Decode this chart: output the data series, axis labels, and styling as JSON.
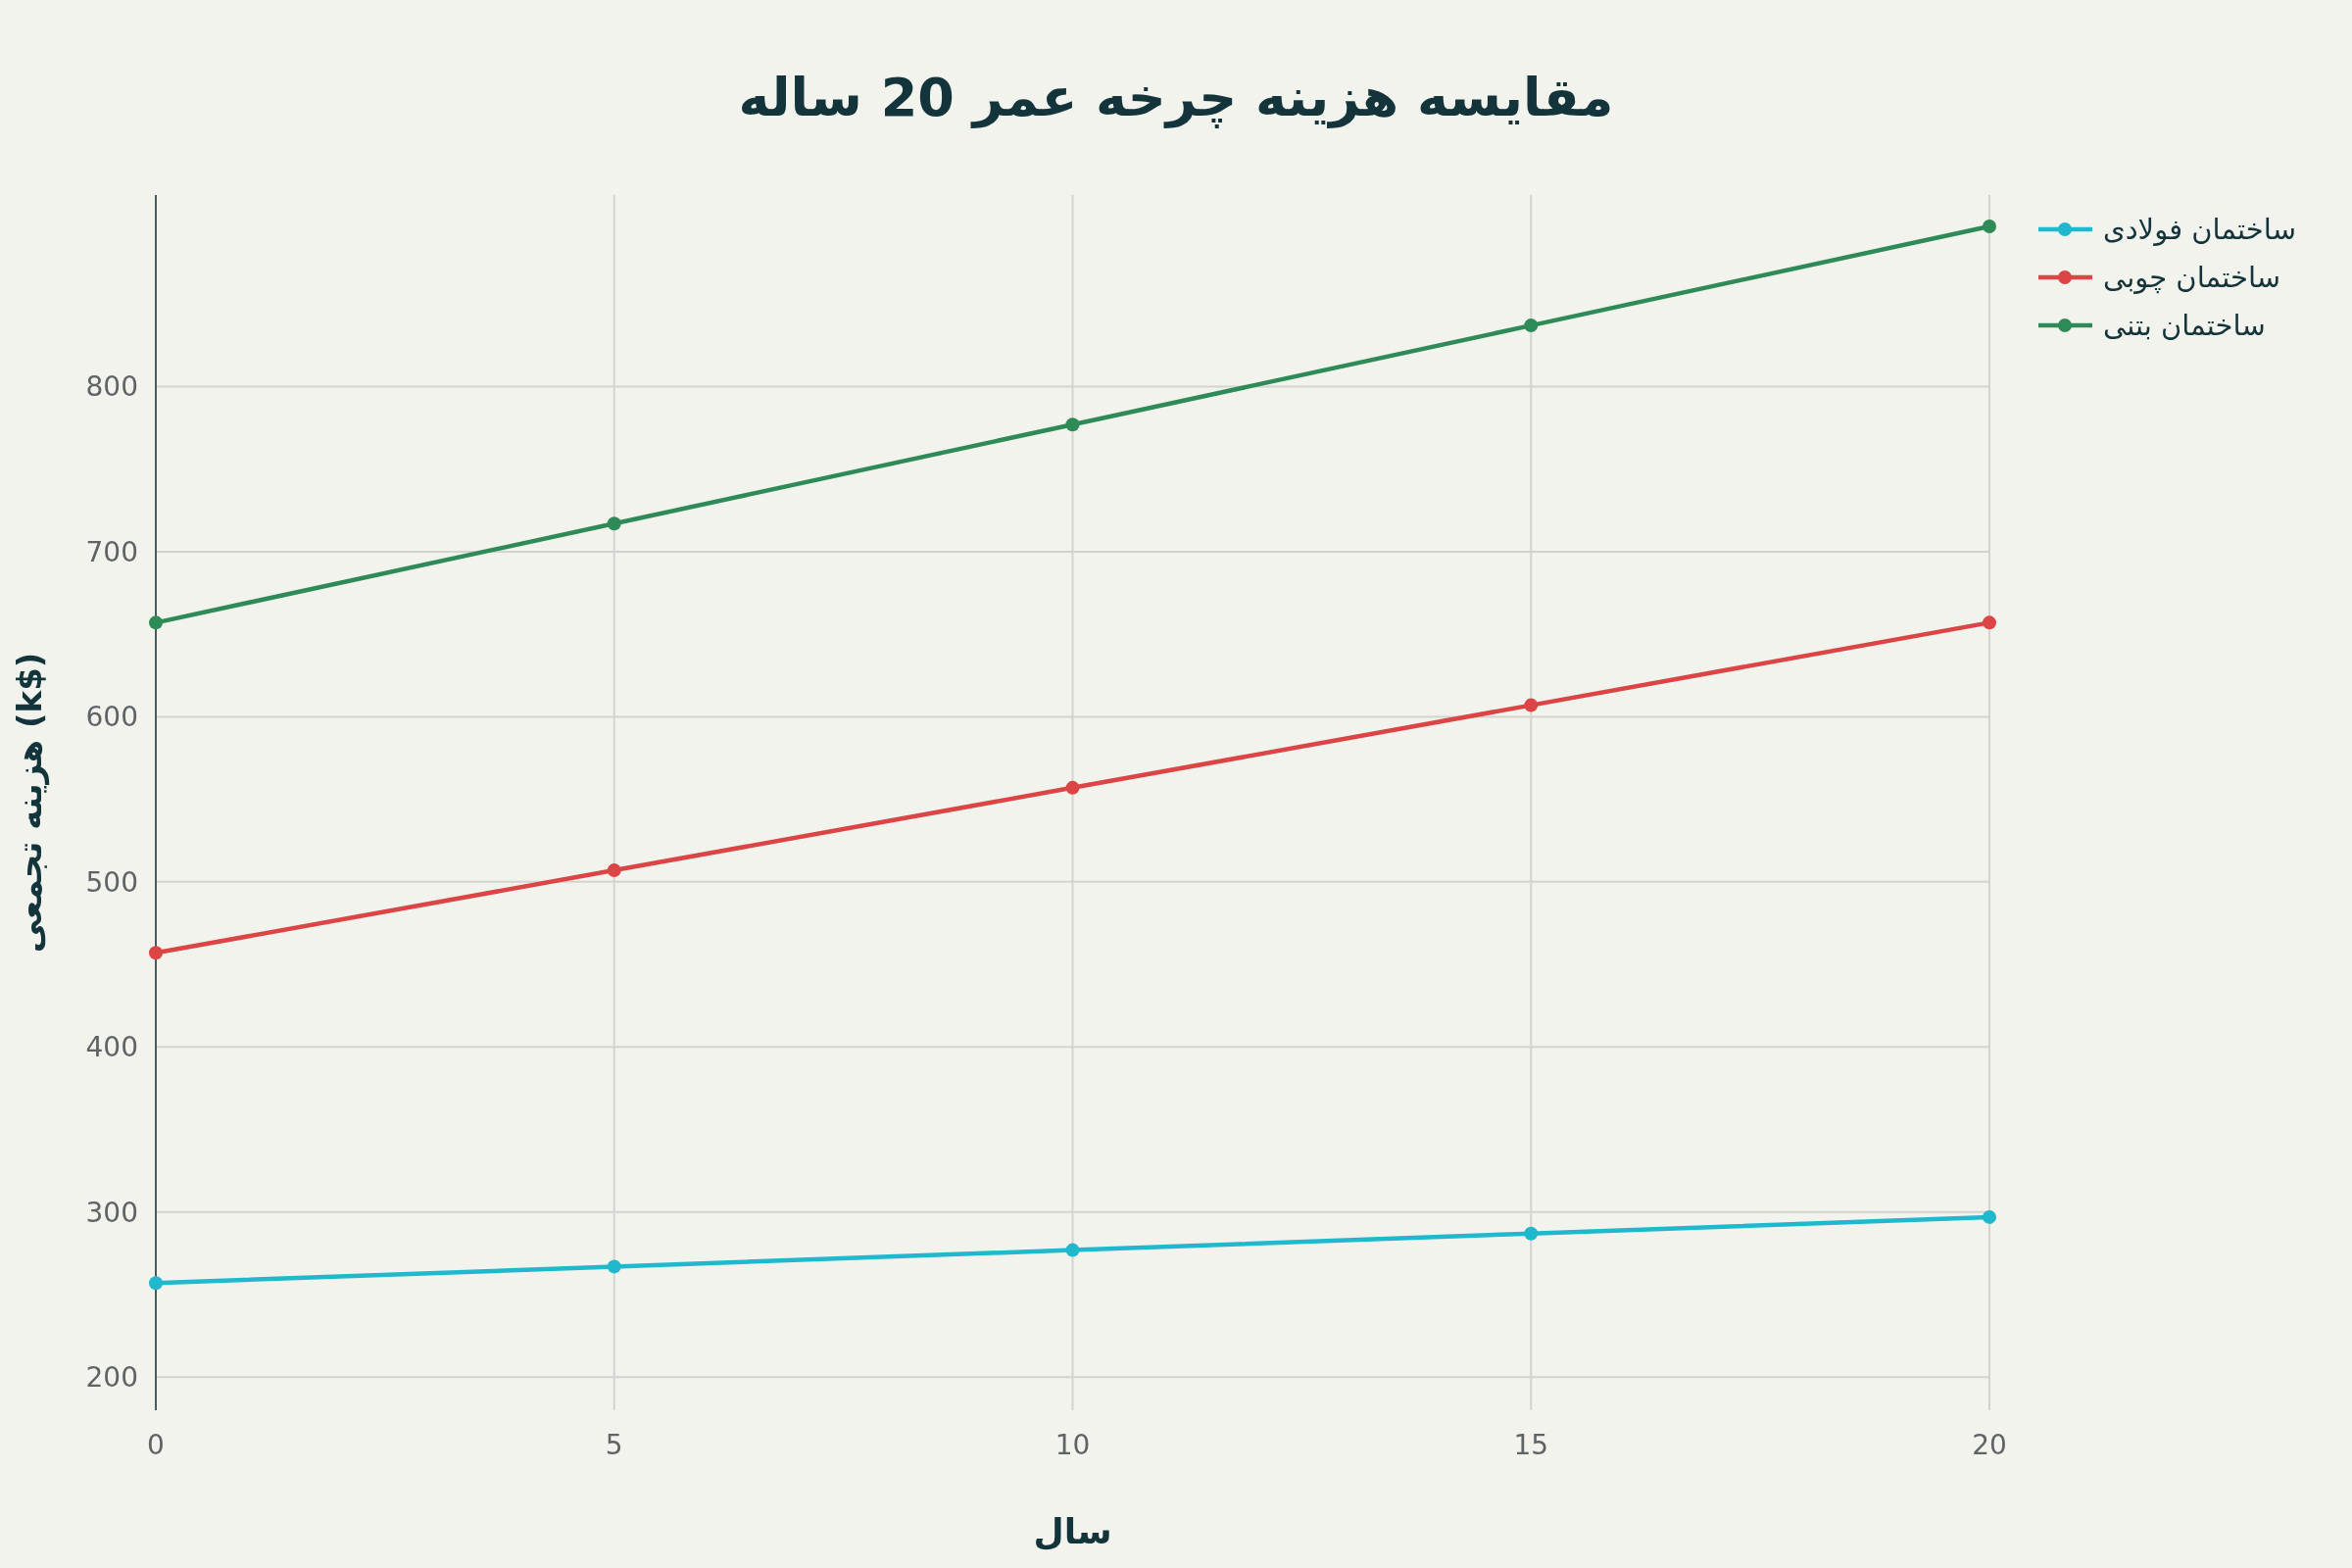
{
  "chart_data": {
    "type": "line",
    "title": "مقایسه هزینه چرخه عمر 20 ساله",
    "xlabel": "سال",
    "ylabel": "هزینه تجمعی (k$)",
    "x": [
      0,
      5,
      10,
      15,
      20
    ],
    "series": [
      {
        "name": "ساختمان فولادی",
        "color": "#1fb8cd",
        "values": [
          257,
          267,
          277,
          287,
          297
        ]
      },
      {
        "name": "ساختمان چوبی",
        "color": "#db4545",
        "values": [
          457,
          507,
          557,
          607,
          657
        ]
      },
      {
        "name": "ساختمان بتنی",
        "color": "#2e8b57",
        "values": [
          657,
          717,
          777,
          837,
          897
        ]
      }
    ],
    "xlim": [
      0,
      20
    ],
    "ylim": [
      180,
      916
    ],
    "xticks": [
      0,
      5,
      10,
      15,
      20
    ],
    "yticks": [
      200,
      300,
      400,
      500,
      600,
      700,
      800
    ],
    "grid": true,
    "legend": "top right",
    "marker": "circle",
    "line_style": "solid"
  }
}
